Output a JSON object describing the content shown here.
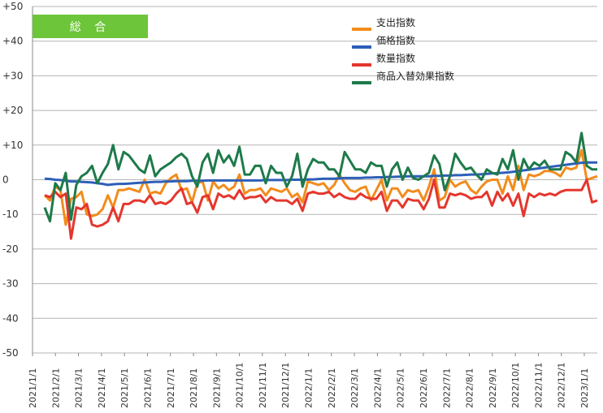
{
  "chart_data": {
    "type": "line",
    "title": "総 合",
    "ylim": [
      -50,
      50
    ],
    "yticks": [
      "+50",
      "+40",
      "+30",
      "+20",
      "+10",
      "0",
      "-10",
      "-20",
      "-30",
      "-40",
      "-50"
    ],
    "ytick_values": [
      50,
      40,
      30,
      20,
      10,
      0,
      -10,
      -20,
      -30,
      -40,
      -50
    ],
    "xlabels": [
      "2021/1/1",
      "2021/2/1",
      "2021/3/1",
      "2021/4/1",
      "2021/5/1",
      "2021/6/1",
      "2021/7/1",
      "2021/8/1",
      "2021/9/1",
      "2021/10/1",
      "2021/11/1",
      "2021/12/1",
      "2022/1/1",
      "2022/2/1",
      "2022/3/1",
      "2022/4/1",
      "2022/5/1",
      "2022/6/1",
      "2022/7/1",
      "2022/8/1",
      "2022/9/1",
      "2022/10/1",
      "2022/11/1",
      "2022/12/1",
      "2023/1/1"
    ],
    "grid": true,
    "legend_position": "top-right",
    "series": [
      {
        "name": "支出指数",
        "color": "#f28c1c",
        "values": [
          -4.5,
          -6,
          -2,
          -3,
          -13,
          -5.5,
          -5,
          -3.5,
          -10,
          -10.5,
          -10,
          -8.5,
          -4.5,
          -8,
          -3,
          -3,
          -2.5,
          -3,
          -3.5,
          0,
          -4,
          -3.5,
          -4,
          -1,
          0.5,
          1.5,
          -3,
          -2.5,
          -6.5,
          -1,
          -0.5,
          -6,
          -0.5,
          -2.5,
          -1.5,
          -3,
          -2,
          1.5,
          -4,
          -3,
          -3,
          -2.5,
          -4.5,
          -2.5,
          -3,
          -3.5,
          -2.5,
          -5,
          -4,
          -6.5,
          -0.5,
          -1,
          -1.5,
          -1,
          -3,
          -1.5,
          1.5,
          -1,
          -3,
          -3.5,
          -2.5,
          -2,
          -6,
          -3,
          0,
          -6,
          -2.5,
          -2.5,
          -5,
          -3,
          -3.5,
          -3,
          -6,
          -2,
          3,
          -6,
          -5,
          0,
          -2,
          -1,
          -0.5,
          -3,
          -4,
          -2,
          -0.5,
          0,
          0,
          -4,
          1,
          -3,
          4,
          -3,
          1.5,
          1,
          1.5,
          2.5,
          2.5,
          2,
          1,
          3.5,
          3,
          3.5,
          8.5,
          0,
          0.5,
          1
        ]
      },
      {
        "name": "価格指数",
        "color": "#2e5fb8",
        "values": [
          0.3,
          0.2,
          0,
          -0.1,
          -0.3,
          -0.5,
          -0.5,
          -0.6,
          -0.7,
          -0.8,
          -1,
          -1.2,
          -1.5,
          -1.3,
          -1.2,
          -1.2,
          -1.1,
          -1,
          -0.9,
          -0.8,
          -0.7,
          -0.6,
          -0.6,
          -0.5,
          -0.5,
          -0.4,
          -0.4,
          -0.4,
          -0.3,
          -0.3,
          -0.3,
          -0.2,
          -0.2,
          -0.2,
          -0.2,
          -0.2,
          -0.2,
          -0.2,
          -0.2,
          -0.2,
          -0.2,
          -0.2,
          -0.1,
          -0.1,
          -0.1,
          -0.1,
          -0.1,
          0,
          0,
          0,
          0.1,
          0.1,
          0.2,
          0.3,
          0.3,
          0.3,
          0.4,
          0.5,
          0.5,
          0.5,
          0.5,
          0.6,
          0.6,
          0.7,
          0.7,
          0.8,
          0.8,
          0.9,
          0.9,
          1,
          1,
          1,
          1,
          1,
          1.1,
          1.1,
          1.2,
          1.2,
          1.3,
          1.3,
          1.4,
          1.5,
          1.5,
          1.6,
          1.7,
          1.8,
          1.9,
          2,
          2.1,
          2.3,
          2.5,
          2.7,
          2.9,
          3.1,
          3.3,
          3.5,
          3.7,
          3.9,
          4.1,
          4.3,
          4.5,
          4.7,
          4.9,
          5,
          5,
          5
        ]
      },
      {
        "name": "数量指数",
        "color": "#e5362d",
        "values": [
          -4.5,
          -5,
          -3.5,
          -5,
          -4,
          -17,
          -8,
          -8.5,
          -7,
          -13,
          -13.5,
          -13,
          -12,
          -8,
          -12,
          -7,
          -7,
          -6,
          -6,
          -6.5,
          -4.5,
          -7,
          -6.5,
          -7,
          -6,
          -4,
          -2.5,
          -7,
          -6.5,
          -9.5,
          -5,
          -4.5,
          -8.5,
          -4,
          -5,
          -4.5,
          -5.5,
          -3,
          -5.5,
          -5,
          -5,
          -4.5,
          -6.5,
          -5,
          -6,
          -6,
          -6,
          -7,
          -5.5,
          -9,
          -4,
          -3.5,
          -4,
          -4,
          -3.5,
          -5,
          -4,
          -5,
          -5.5,
          -5.5,
          -4,
          -5,
          -5.5,
          -5.5,
          -3.5,
          -9,
          -6,
          -6,
          -8,
          -5.5,
          -6,
          -6,
          -8.5,
          -5.5,
          0,
          -8,
          -8,
          -4,
          -4.5,
          -4,
          -4.5,
          -5.5,
          -5,
          -5,
          -3.5,
          -7.5,
          -3.5,
          -6,
          -4,
          -7.5,
          -4,
          -10.5,
          -4,
          -5,
          -4,
          -4.5,
          -4,
          -4.5,
          -3.5,
          -3,
          -3,
          -3,
          -3,
          0,
          -6.5,
          -6
        ]
      },
      {
        "name": "商品入替効果指数",
        "color": "#1e7a4a",
        "values": [
          -8,
          -12,
          -1,
          -3,
          2,
          -11.5,
          -1.5,
          1,
          2,
          4,
          -1,
          2,
          4.5,
          10,
          3,
          8,
          7,
          5,
          3,
          2,
          7,
          1,
          3,
          4,
          5,
          6.5,
          7.5,
          6,
          1,
          -2,
          5,
          7.5,
          2,
          8.5,
          5,
          7,
          4,
          9.5,
          1.5,
          1.5,
          4,
          4,
          -1,
          4,
          2,
          2,
          -2,
          1,
          7.5,
          -2,
          3,
          6,
          5,
          5,
          3,
          3,
          1,
          8,
          5.5,
          3,
          3,
          2,
          5,
          4,
          4,
          -2,
          3,
          5,
          0,
          3.5,
          0.5,
          0,
          1,
          2,
          7,
          4.5,
          -3,
          1,
          7.5,
          5,
          3,
          3.5,
          1.5,
          0,
          3,
          2,
          1.5,
          6,
          3,
          8.5,
          0,
          6,
          3,
          5,
          4,
          5.5,
          3,
          3,
          3,
          8,
          7,
          5,
          13.5,
          4,
          3,
          3
        ]
      }
    ]
  }
}
